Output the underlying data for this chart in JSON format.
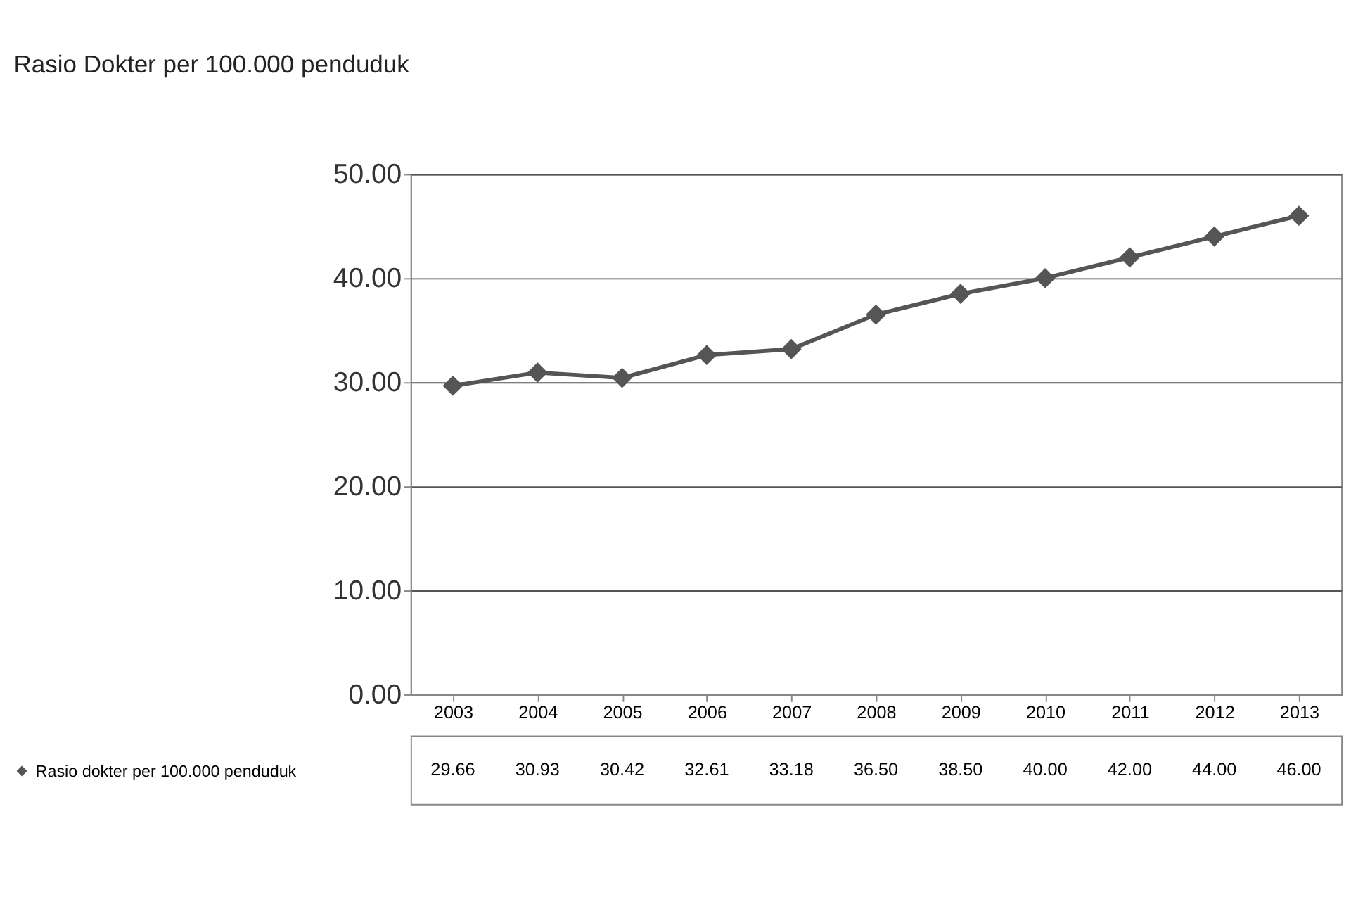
{
  "chart_data": {
    "type": "line",
    "title": "Rasio Dokter per 100.000 penduduk",
    "categories": [
      "2003",
      "2004",
      "2005",
      "2006",
      "2007",
      "2008",
      "2009",
      "2010",
      "2011",
      "2012",
      "2013"
    ],
    "series": [
      {
        "name": "Rasio dokter per 100.000 penduduk",
        "color": "#555555",
        "values": [
          29.66,
          30.93,
          30.42,
          32.61,
          33.18,
          36.5,
          38.5,
          40.0,
          42.0,
          44.0,
          46.0
        ],
        "value_labels": [
          "29.66",
          "30.93",
          "30.42",
          "32.61",
          "33.18",
          "36.50",
          "38.50",
          "40.00",
          "42.00",
          "44.00",
          "46.00"
        ]
      }
    ],
    "ylim": [
      0,
      50
    ],
    "yticks": [
      {
        "value": 0,
        "label": "0.00"
      },
      {
        "value": 10,
        "label": "10.00"
      },
      {
        "value": 20,
        "label": "20.00"
      },
      {
        "value": 30,
        "label": "30.00"
      },
      {
        "value": 40,
        "label": "40.00"
      },
      {
        "value": 50,
        "label": "50.00"
      }
    ],
    "grid": "y",
    "legend": "bottom left",
    "marker": "diamond",
    "line_style": "solid"
  }
}
